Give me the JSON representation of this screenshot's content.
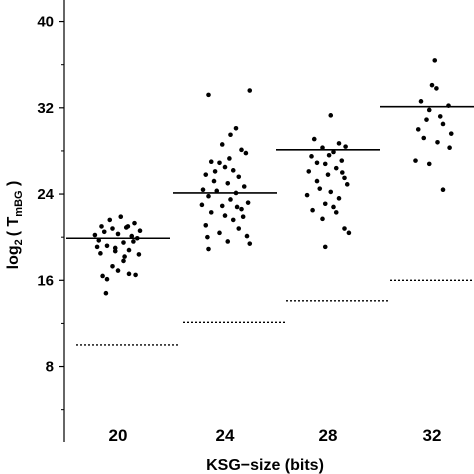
{
  "chart_data": {
    "type": "scatter",
    "xlabel": "KSG−size (bits)",
    "ylabel_main": "log",
    "ylabel_sub": "2",
    "ylabel_paren_open": "( T",
    "ylabel_T_sub": "mBG",
    "ylabel_paren_close": " )",
    "categories": [
      "20",
      "24",
      "28",
      "32"
    ],
    "y_ticks": [
      "8",
      "16",
      "24",
      "32",
      "40"
    ],
    "y_tick_values": [
      8,
      16,
      24,
      32,
      40
    ],
    "ylim": [
      1,
      42
    ],
    "grid": false,
    "groups": [
      {
        "category": "20",
        "mean": 19.9,
        "bound": 10.0,
        "points": [
          {
            "x": -0.42,
            "y": 20.2
          },
          {
            "x": -0.35,
            "y": 19.7
          },
          {
            "x": -0.3,
            "y": 21.0
          },
          {
            "x": -0.25,
            "y": 20.5
          },
          {
            "x": -0.2,
            "y": 19.2
          },
          {
            "x": -0.15,
            "y": 21.6
          },
          {
            "x": -0.1,
            "y": 20.8
          },
          {
            "x": -0.05,
            "y": 19.0
          },
          {
            "x": 0.0,
            "y": 20.3
          },
          {
            "x": 0.05,
            "y": 21.9
          },
          {
            "x": 0.1,
            "y": 19.5
          },
          {
            "x": 0.15,
            "y": 20.9
          },
          {
            "x": 0.2,
            "y": 18.8
          },
          {
            "x": 0.25,
            "y": 20.1
          },
          {
            "x": 0.3,
            "y": 21.3
          },
          {
            "x": 0.35,
            "y": 19.9
          },
          {
            "x": 0.4,
            "y": 20.6
          },
          {
            "x": -0.32,
            "y": 18.5
          },
          {
            "x": -0.28,
            "y": 16.4
          },
          {
            "x": -0.2,
            "y": 16.1
          },
          {
            "x": -0.1,
            "y": 17.3
          },
          {
            "x": 0.0,
            "y": 16.9
          },
          {
            "x": 0.1,
            "y": 17.8
          },
          {
            "x": 0.2,
            "y": 16.6
          },
          {
            "x": 0.32,
            "y": 16.5
          },
          {
            "x": -0.22,
            "y": 14.8
          },
          {
            "x": 0.12,
            "y": 18.2
          },
          {
            "x": -0.05,
            "y": 18.7
          },
          {
            "x": 0.28,
            "y": 19.6
          },
          {
            "x": -0.38,
            "y": 19.1
          },
          {
            "x": 0.38,
            "y": 18.4
          },
          {
            "x": 0.18,
            "y": 21.0
          }
        ]
      },
      {
        "category": "24",
        "mean": 24.1,
        "bound": 12.1,
        "points": [
          {
            "x": -0.3,
            "y": 33.2
          },
          {
            "x": 0.45,
            "y": 33.6
          },
          {
            "x": 0.2,
            "y": 30.1
          },
          {
            "x": 0.1,
            "y": 29.5
          },
          {
            "x": -0.05,
            "y": 28.6
          },
          {
            "x": 0.3,
            "y": 28.1
          },
          {
            "x": 0.38,
            "y": 27.8
          },
          {
            "x": -0.25,
            "y": 27.0
          },
          {
            "x": -0.1,
            "y": 26.9
          },
          {
            "x": 0.0,
            "y": 26.5
          },
          {
            "x": 0.15,
            "y": 26.2
          },
          {
            "x": -0.35,
            "y": 25.8
          },
          {
            "x": 0.25,
            "y": 25.6
          },
          {
            "x": -0.2,
            "y": 25.2
          },
          {
            "x": 0.05,
            "y": 25.0
          },
          {
            "x": 0.35,
            "y": 24.7
          },
          {
            "x": -0.4,
            "y": 24.4
          },
          {
            "x": -0.15,
            "y": 24.3
          },
          {
            "x": 0.2,
            "y": 24.1
          },
          {
            "x": -0.3,
            "y": 23.8
          },
          {
            "x": 0.1,
            "y": 23.5
          },
          {
            "x": 0.42,
            "y": 23.2
          },
          {
            "x": -0.05,
            "y": 22.9
          },
          {
            "x": 0.3,
            "y": 22.6
          },
          {
            "x": -0.25,
            "y": 22.3
          },
          {
            "x": 0.0,
            "y": 22.0
          },
          {
            "x": 0.15,
            "y": 21.6
          },
          {
            "x": -0.35,
            "y": 21.1
          },
          {
            "x": 0.25,
            "y": 20.8
          },
          {
            "x": -0.1,
            "y": 20.4
          },
          {
            "x": 0.4,
            "y": 20.1
          },
          {
            "x": -0.32,
            "y": 20.0
          },
          {
            "x": 0.05,
            "y": 19.6
          },
          {
            "x": 0.45,
            "y": 19.4
          },
          {
            "x": -0.3,
            "y": 18.9
          },
          {
            "x": 0.33,
            "y": 21.9
          },
          {
            "x": -0.18,
            "y": 26.1
          },
          {
            "x": 0.08,
            "y": 27.3
          },
          {
            "x": -0.42,
            "y": 23.0
          },
          {
            "x": 0.22,
            "y": 22.8
          }
        ]
      },
      {
        "category": "28",
        "mean": 28.1,
        "bound": 14.1,
        "points": [
          {
            "x": 0.05,
            "y": 31.3
          },
          {
            "x": -0.25,
            "y": 29.1
          },
          {
            "x": 0.2,
            "y": 28.7
          },
          {
            "x": 0.32,
            "y": 28.4
          },
          {
            "x": -0.1,
            "y": 28.3
          },
          {
            "x": 0.1,
            "y": 27.9
          },
          {
            "x": -0.3,
            "y": 27.5
          },
          {
            "x": 0.25,
            "y": 27.1
          },
          {
            "x": -0.05,
            "y": 26.8
          },
          {
            "x": 0.15,
            "y": 26.4
          },
          {
            "x": -0.35,
            "y": 26.1
          },
          {
            "x": 0.0,
            "y": 25.8
          },
          {
            "x": 0.3,
            "y": 25.5
          },
          {
            "x": -0.2,
            "y": 25.2
          },
          {
            "x": 0.35,
            "y": 24.9
          },
          {
            "x": -0.15,
            "y": 24.5
          },
          {
            "x": 0.05,
            "y": 24.2
          },
          {
            "x": -0.38,
            "y": 23.9
          },
          {
            "x": 0.2,
            "y": 23.6
          },
          {
            "x": -0.05,
            "y": 23.1
          },
          {
            "x": 0.1,
            "y": 22.8
          },
          {
            "x": -0.28,
            "y": 22.5
          },
          {
            "x": 0.15,
            "y": 22.3
          },
          {
            "x": -0.1,
            "y": 21.7
          },
          {
            "x": 0.3,
            "y": 20.8
          },
          {
            "x": 0.38,
            "y": 20.4
          },
          {
            "x": -0.05,
            "y": 19.1
          },
          {
            "x": -0.2,
            "y": 26.9
          },
          {
            "x": 0.02,
            "y": 27.6
          },
          {
            "x": 0.26,
            "y": 26.0
          }
        ]
      },
      {
        "category": "32",
        "mean": 32.1,
        "bound": 16.0,
        "points": [
          {
            "x": 0.05,
            "y": 36.4
          },
          {
            "x": 0.0,
            "y": 34.1
          },
          {
            "x": 0.08,
            "y": 33.8
          },
          {
            "x": -0.2,
            "y": 32.6
          },
          {
            "x": 0.3,
            "y": 32.2
          },
          {
            "x": -0.05,
            "y": 31.8
          },
          {
            "x": 0.15,
            "y": 31.2
          },
          {
            "x": -0.1,
            "y": 30.9
          },
          {
            "x": 0.2,
            "y": 30.5
          },
          {
            "x": -0.25,
            "y": 30.0
          },
          {
            "x": 0.35,
            "y": 29.6
          },
          {
            "x": -0.15,
            "y": 29.2
          },
          {
            "x": 0.1,
            "y": 28.8
          },
          {
            "x": 0.32,
            "y": 28.3
          },
          {
            "x": -0.3,
            "y": 27.1
          },
          {
            "x": -0.05,
            "y": 26.8
          },
          {
            "x": 0.2,
            "y": 24.4
          }
        ]
      }
    ]
  }
}
